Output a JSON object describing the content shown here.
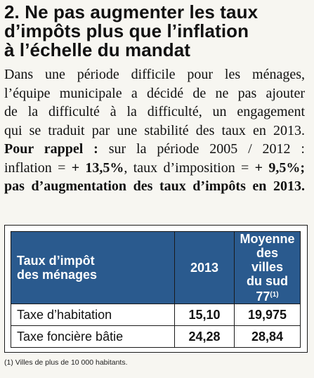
{
  "heading": {
    "line1": "2. Ne pas augmenter les taux",
    "line2": "d’impôts plus que l’inflation",
    "line3": "à l’échelle du mandat"
  },
  "paragraph": {
    "line1": "Dans une période difficile pour les ménages,",
    "line2": "l’équipe municipale a décidé de ne pas ajouter",
    "line3": "de la difficulté à la difficulté, un engagement",
    "line4": "qui se traduit par une stabilité des taux en 2013.",
    "reminder_label": "Pour rappel :",
    "line5_rest": " sur la période 2005 / 2012 :",
    "line6_a": "inflation = ",
    "line6_b": "+ 13,5%",
    "line6_c": ", taux d’imposition = ",
    "line6_d": "+ 9,5%;",
    "line7": "pas d’augmentation des taux d’impôts en 2013."
  },
  "table": {
    "header": {
      "label_line1": "Taux d’impôt",
      "label_line2": "des ménages",
      "year": "2013",
      "avg_line1": "Moyenne",
      "avg_line2": "des villes",
      "avg_line3": "du sud 77",
      "avg_note": "(1)"
    },
    "rows": [
      {
        "label": "Taxe d’habitation",
        "year_value": "15,10",
        "avg_value": "19,975"
      },
      {
        "label": "Taxe foncière bâtie",
        "year_value": "24,28",
        "avg_value": "28,84"
      }
    ]
  },
  "footnote": "(1) Villes de plus de 10 000 habitants.",
  "colors": {
    "header_bg": "#2a5a8e",
    "page_bg": "#f7f6f1"
  }
}
